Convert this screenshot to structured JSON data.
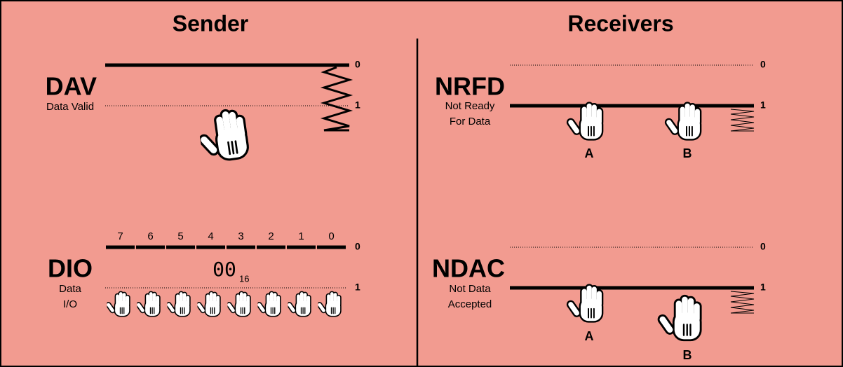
{
  "sender": {
    "title": "Sender",
    "dav": {
      "label": "DAV",
      "sublabel": [
        "Data Valid"
      ],
      "level_top": "0",
      "level_bottom": "1"
    },
    "dio": {
      "label": "DIO",
      "sublabel": [
        "Data",
        "I/O"
      ],
      "bits": [
        "7",
        "6",
        "5",
        "4",
        "3",
        "2",
        "1",
        "0"
      ],
      "value": "00",
      "base": "16",
      "level_top": "0",
      "level_bottom": "1"
    }
  },
  "receivers": {
    "title": "Receivers",
    "nrfd": {
      "label": "NRFD",
      "sublabel": [
        "Not Ready",
        "For Data"
      ],
      "hands": [
        "A",
        "B"
      ],
      "level_top": "0",
      "level_bottom": "1"
    },
    "ndac": {
      "label": "NDAC",
      "sublabel": [
        "Not Data",
        "Accepted"
      ],
      "hands": [
        "A",
        "B"
      ],
      "level_top": "0",
      "level_bottom": "1"
    }
  }
}
